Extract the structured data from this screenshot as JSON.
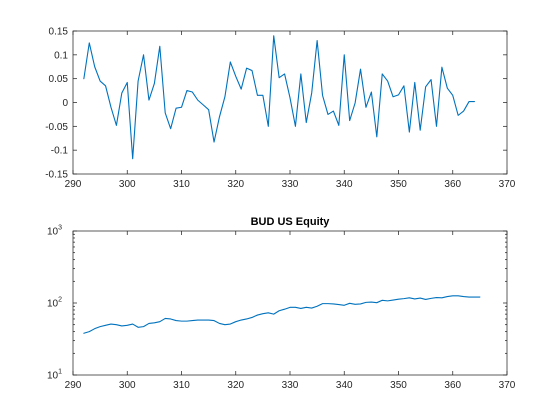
{
  "chart_data": [
    {
      "type": "line",
      "title": "",
      "xlabel": "",
      "ylabel": "",
      "xlim": [
        290,
        370
      ],
      "ylim": [
        -0.15,
        0.15
      ],
      "yscale": "linear",
      "grid": false,
      "xticks": [
        290,
        300,
        310,
        320,
        330,
        340,
        350,
        360,
        370
      ],
      "xtick_labels": [
        "290",
        "300",
        "310",
        "320",
        "330",
        "340",
        "350",
        "360",
        "370"
      ],
      "yticks": [
        -0.15,
        -0.1,
        -0.05,
        0,
        0.05,
        0.1,
        0.15
      ],
      "ytick_labels": [
        "-0.15",
        "-0.1",
        "-0.05",
        "0",
        "0.05",
        "0.1",
        "0.15"
      ],
      "color": "#0072bd",
      "series": [
        {
          "x": [
            292,
            293,
            294,
            295,
            296,
            297,
            298,
            299,
            300,
            301,
            302,
            303,
            304,
            305,
            306,
            307,
            308,
            309,
            310,
            311,
            312,
            313,
            314,
            315,
            316,
            317,
            318,
            319,
            320,
            321,
            322,
            323,
            324,
            325,
            326,
            327,
            328,
            329,
            330,
            331,
            332,
            333,
            334,
            335,
            336,
            337,
            338,
            339,
            340,
            341,
            342,
            343,
            344,
            345,
            346,
            347,
            348,
            349,
            350,
            351,
            352,
            353,
            354,
            355,
            356,
            357,
            358,
            359,
            360,
            361,
            362,
            363,
            364
          ],
          "values": [
            0.05,
            0.125,
            0.075,
            0.045,
            0.035,
            -0.01,
            -0.048,
            0.02,
            0.042,
            -0.118,
            0.045,
            0.1,
            0.005,
            0.04,
            0.118,
            -0.022,
            -0.055,
            -0.012,
            -0.01,
            0.025,
            0.022,
            0.005,
            -0.005,
            -0.015,
            -0.083,
            -0.03,
            0.012,
            0.085,
            0.055,
            0.028,
            0.072,
            0.067,
            0.015,
            0.015,
            -0.05,
            0.14,
            0.052,
            0.06,
            0.01,
            -0.05,
            0.06,
            -0.042,
            0.02,
            0.13,
            0.015,
            -0.025,
            -0.018,
            -0.048,
            0.1,
            -0.038,
            -0.001,
            0.07,
            -0.01,
            0.022,
            -0.072,
            0.06,
            0.045,
            0.012,
            0.016,
            0.035,
            -0.062,
            0.042,
            -0.058,
            0.033,
            0.048,
            -0.05,
            0.074,
            0.03,
            0.015,
            -0.027,
            -0.018,
            0.002,
            0.002
          ]
        }
      ]
    },
    {
      "type": "line",
      "title": "BUD US Equity",
      "xlabel": "",
      "ylabel": "",
      "xlim": [
        290,
        370
      ],
      "ylim": [
        10,
        1000
      ],
      "yscale": "log",
      "grid": false,
      "xticks": [
        290,
        300,
        310,
        320,
        330,
        340,
        350,
        360,
        370
      ],
      "xtick_labels": [
        "290",
        "300",
        "310",
        "320",
        "330",
        "340",
        "350",
        "360",
        "370"
      ],
      "yticks": [
        10,
        100,
        1000
      ],
      "ytick_exponents": [
        "1",
        "2",
        "3"
      ],
      "ytick_base": "10",
      "color": "#0072bd",
      "series": [
        {
          "x": [
            292,
            293,
            294,
            295,
            296,
            297,
            298,
            299,
            300,
            301,
            302,
            303,
            304,
            305,
            306,
            307,
            308,
            309,
            310,
            311,
            312,
            313,
            314,
            315,
            316,
            317,
            318,
            319,
            320,
            321,
            322,
            323,
            324,
            325,
            326,
            327,
            328,
            329,
            330,
            331,
            332,
            333,
            334,
            335,
            336,
            337,
            338,
            339,
            340,
            341,
            342,
            343,
            344,
            345,
            346,
            347,
            348,
            349,
            350,
            351,
            352,
            353,
            354,
            355,
            356,
            357,
            358,
            359,
            360,
            361,
            362,
            363,
            364,
            365
          ],
          "values": [
            38,
            40,
            44,
            47,
            49,
            51,
            50,
            48,
            49,
            51,
            46,
            47,
            52,
            53,
            55,
            61,
            60,
            57,
            56,
            56,
            57,
            58,
            58,
            58,
            57,
            52,
            50,
            51,
            55,
            58,
            60,
            63,
            68,
            71,
            73,
            70,
            78,
            82,
            87,
            87,
            84,
            87,
            85,
            90,
            98,
            98,
            97,
            95,
            93,
            99,
            96,
            97,
            102,
            103,
            101,
            109,
            107,
            110,
            113,
            115,
            118,
            114,
            117,
            112,
            116,
            119,
            118,
            123,
            126,
            126,
            123,
            121,
            121,
            121
          ]
        }
      ]
    }
  ]
}
